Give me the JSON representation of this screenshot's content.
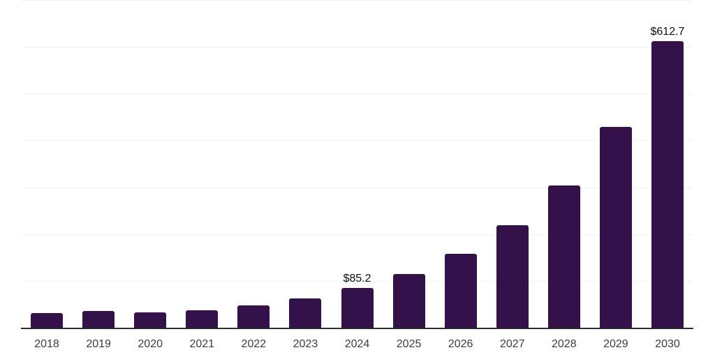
{
  "chart_data": {
    "type": "bar",
    "title": "",
    "xlabel": "",
    "ylabel": "",
    "categories": [
      "2018",
      "2019",
      "2020",
      "2021",
      "2022",
      "2023",
      "2024",
      "2025",
      "2026",
      "2027",
      "2028",
      "2029",
      "2030"
    ],
    "values": [
      31.5,
      36.5,
      33.3,
      37.5,
      47.5,
      63.1,
      85.2,
      115.3,
      158.5,
      219.0,
      304.5,
      429.0,
      612.7
    ],
    "point_labels": [
      "",
      "",
      "",
      "",
      "",
      "",
      "$85.2",
      "",
      "",
      "",
      "",
      "",
      "$612.7"
    ],
    "ylim": [
      0,
      700
    ],
    "gridline_step": 100,
    "grid": true,
    "legend_position": "none",
    "y_axis_labels_visible": false,
    "colors": {
      "bar": "#341149",
      "gridline": "#f2f2f2",
      "axis": "#2b2b2b",
      "tick_label": "#3c3c3c",
      "data_label": "#0d0d0d",
      "background": "#ffffff"
    }
  }
}
